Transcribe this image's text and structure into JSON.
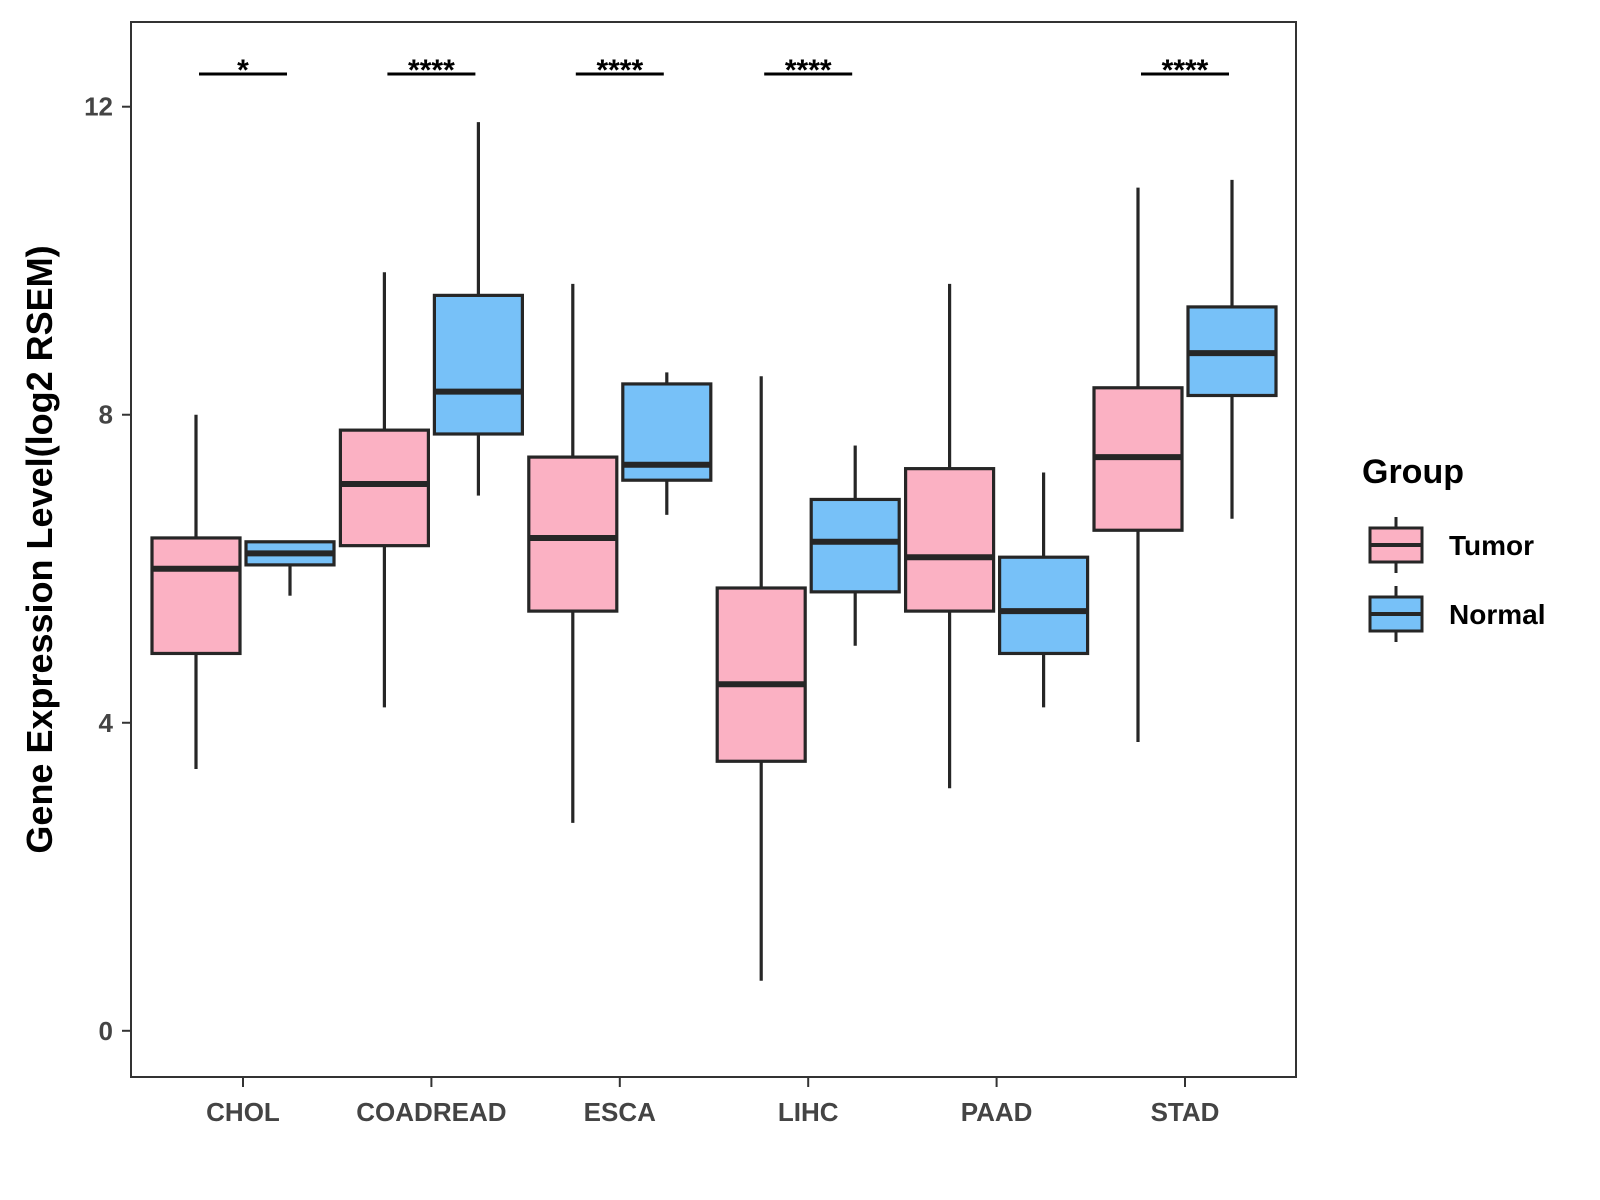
{
  "chart_data": {
    "type": "boxplot",
    "title": "",
    "xlabel": "",
    "ylabel": "Gene Expression Level(log2 RSEM)",
    "ylim": [
      -0.6,
      13.1
    ],
    "yticks": [
      0,
      4,
      8,
      12
    ],
    "grid": false,
    "legend": {
      "title": "Group",
      "position": "right",
      "entries": [
        {
          "name": "Tumor",
          "color": "#FBB1C3"
        },
        {
          "name": "Normal",
          "color": "#77C1F8"
        }
      ]
    },
    "categories": [
      "CHOL",
      "COADREAD",
      "ESCA",
      "LIHC",
      "PAAD",
      "STAD"
    ],
    "series": [
      {
        "name": "Tumor",
        "color": "#FBB1C3",
        "boxes": [
          {
            "min": 3.4,
            "q1": 4.9,
            "median": 6.0,
            "q3": 6.4,
            "max": 8.0
          },
          {
            "min": 4.2,
            "q1": 6.3,
            "median": 7.1,
            "q3": 7.8,
            "max": 9.85
          },
          {
            "min": 2.7,
            "q1": 5.45,
            "median": 6.4,
            "q3": 7.45,
            "max": 9.7
          },
          {
            "min": 0.65,
            "q1": 3.5,
            "median": 4.5,
            "q3": 5.75,
            "max": 8.5
          },
          {
            "min": 3.15,
            "q1": 5.45,
            "median": 6.15,
            "q3": 7.3,
            "max": 9.7
          },
          {
            "min": 3.75,
            "q1": 6.5,
            "median": 7.45,
            "q3": 8.35,
            "max": 10.95
          }
        ]
      },
      {
        "name": "Normal",
        "color": "#77C1F8",
        "boxes": [
          {
            "min": 5.65,
            "q1": 6.05,
            "median": 6.2,
            "q3": 6.35,
            "max": 6.35
          },
          {
            "min": 6.95,
            "q1": 7.75,
            "median": 8.3,
            "q3": 9.55,
            "max": 11.8
          },
          {
            "min": 6.7,
            "q1": 7.15,
            "median": 7.35,
            "q3": 8.4,
            "max": 8.55
          },
          {
            "min": 5.0,
            "q1": 5.7,
            "median": 6.35,
            "q3": 6.9,
            "max": 7.6
          },
          {
            "min": 4.2,
            "q1": 4.9,
            "median": 5.45,
            "q3": 6.15,
            "max": 7.25
          },
          {
            "min": 6.65,
            "q1": 8.25,
            "median": 8.8,
            "q3": 9.4,
            "max": 11.05
          }
        ]
      }
    ],
    "significance": [
      "*",
      "****",
      "****",
      "****",
      "",
      "****"
    ]
  }
}
